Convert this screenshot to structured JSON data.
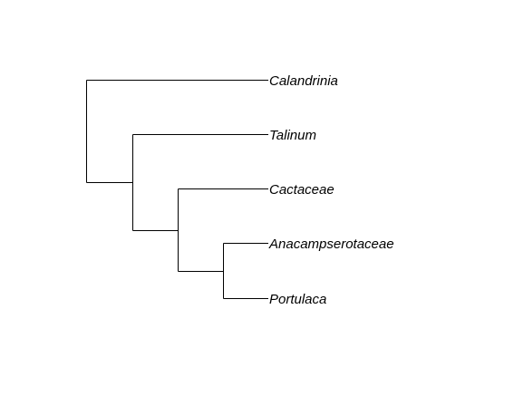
{
  "tree": {
    "taxa": [
      {
        "id": "calandrinia",
        "label": "Calandrinia"
      },
      {
        "id": "talinum",
        "label": "Talinum"
      },
      {
        "id": "cactaceae",
        "label": "Cactaceae"
      },
      {
        "id": "anacampserotaceae",
        "label": "Anacampserotaceae"
      },
      {
        "id": "portulaca",
        "label": "Portulaca"
      }
    ],
    "newick": "(Calandrinia,(Talinum,(Cactaceae,(Anacampserotaceae,Portulaca))));",
    "line_color": "#000000",
    "label_color": "#000000",
    "label_style": "italic"
  }
}
